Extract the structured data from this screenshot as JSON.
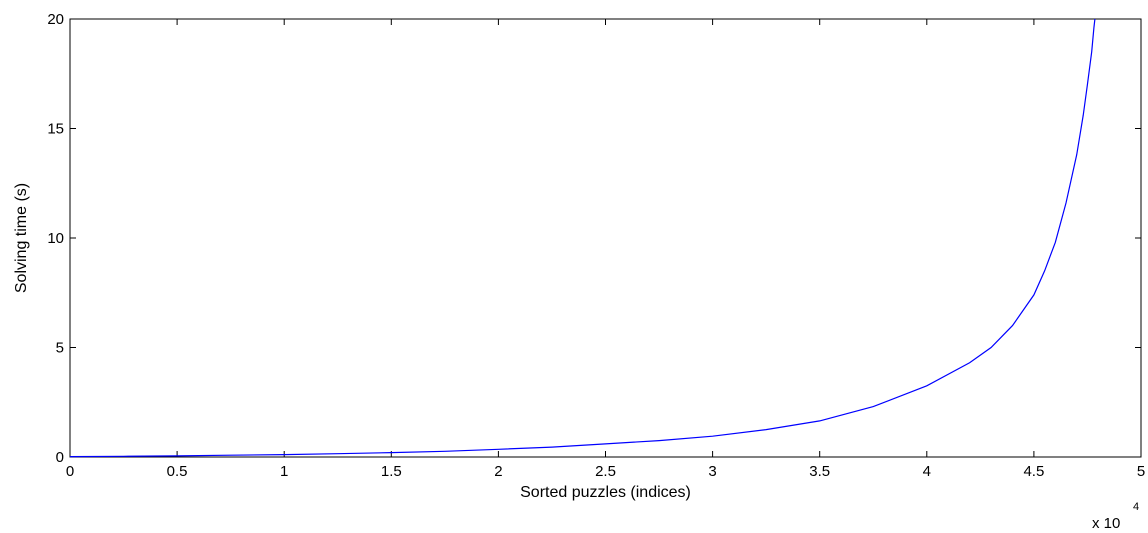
{
  "chart_data": {
    "type": "line",
    "title": "",
    "xlabel": "Sorted puzzles (indices)",
    "ylabel": "Solving time (s)",
    "x_multiplier_label": "x 10",
    "x_multiplier_power": "4",
    "xlim": [
      0,
      50000
    ],
    "ylim": [
      0,
      20
    ],
    "xticks": [
      0,
      5000,
      10000,
      15000,
      20000,
      25000,
      30000,
      35000,
      40000,
      45000,
      50000
    ],
    "xtick_labels": [
      "0",
      "0.5",
      "1",
      "1.5",
      "2",
      "2.5",
      "3",
      "3.5",
      "4",
      "4.5",
      "5"
    ],
    "yticks": [
      0,
      5,
      10,
      15,
      20
    ],
    "ytick_labels": [
      "0",
      "5",
      "10",
      "15",
      "20"
    ],
    "grid": false,
    "series": [
      {
        "color": "#0000ff",
        "x": [
          0,
          2500,
          5000,
          7500,
          10000,
          12500,
          15000,
          17500,
          20000,
          22500,
          25000,
          27500,
          30000,
          32500,
          35000,
          37500,
          40000,
          42000,
          43000,
          44000,
          45000,
          45500,
          46000,
          46500,
          47000,
          47300,
          47500,
          47700,
          47800,
          47850
        ],
        "y": [
          0.02,
          0.03,
          0.05,
          0.08,
          0.11,
          0.15,
          0.2,
          0.26,
          0.35,
          0.45,
          0.6,
          0.75,
          0.95,
          1.25,
          1.65,
          2.3,
          3.25,
          4.3,
          5.0,
          6.0,
          7.4,
          8.5,
          9.8,
          11.6,
          13.8,
          15.6,
          17.0,
          18.5,
          19.6,
          20.0
        ]
      }
    ]
  }
}
